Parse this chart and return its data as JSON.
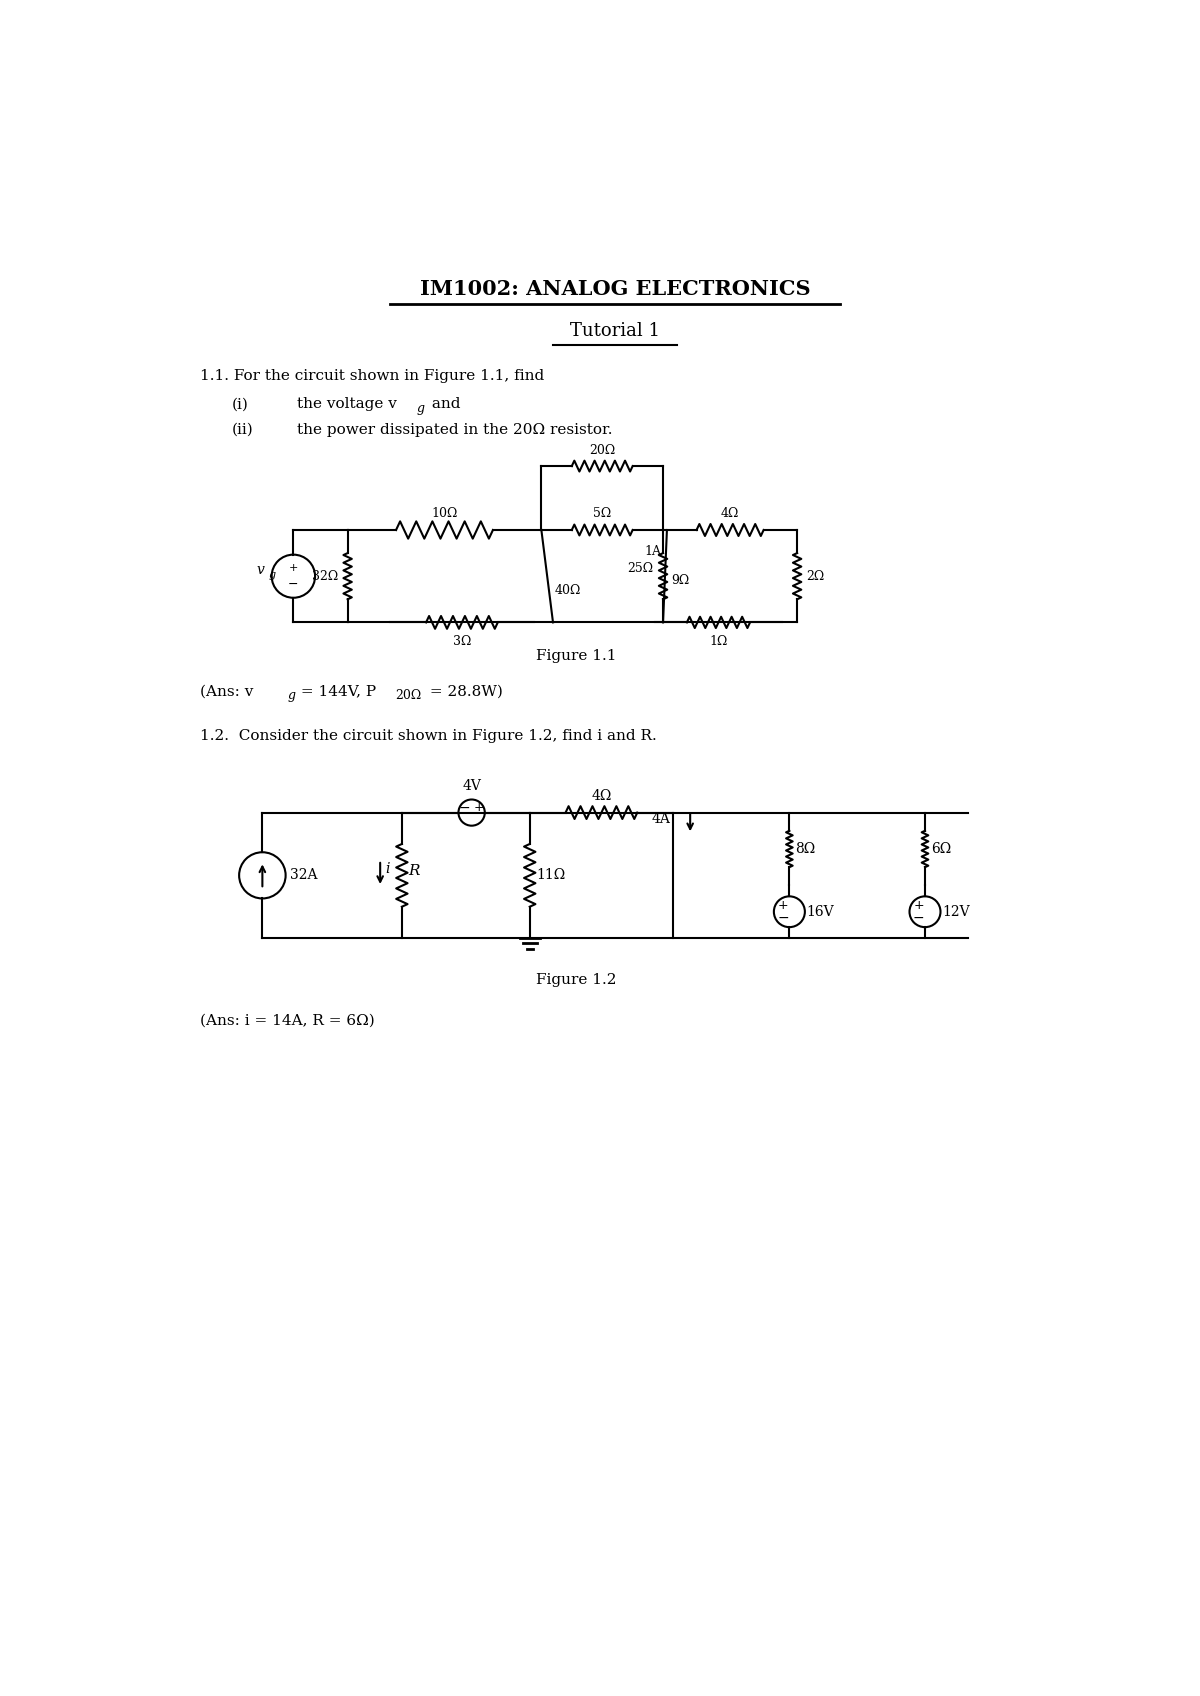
{
  "title": "IM1002: ANALOG ELECTRONICS",
  "subtitle": "Tutorial 1",
  "q1_text": "1.1. For the circuit shown in Figure 1.1, find",
  "q1_i_label": "(i)",
  "q1_i_text": "the voltage v",
  "q1_i_sub": "g",
  "q1_i_end": " and",
  "q1_ii_label": "(ii)",
  "q1_ii_text": "the power dissipated in the 20Ω resistor.",
  "fig1_caption": "Figure 1.1",
  "ans1_pre": "(Ans: v",
  "ans1_sub": "g",
  "ans1_post": " = 144V, P",
  "ans1_sub2": "20Ω",
  "ans1_end": " = 28.8W)",
  "q2_text": "1.2.  Consider the circuit shown in Figure 1.2, find i and R.",
  "fig2_caption": "Figure 1.2",
  "ans2": "(Ans: i = 14A, R = 6Ω)",
  "bg_color": "#ffffff",
  "line_color": "#000000"
}
